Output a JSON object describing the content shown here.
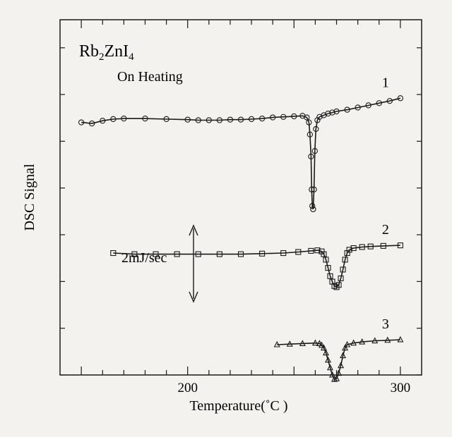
{
  "chart_data": {
    "type": "line",
    "title": "Rb2ZnI4",
    "subtitle": "On Heating",
    "xlabel": "Temperature(˚C )",
    "ylabel": "DSC Signal",
    "xlim": [
      140,
      310
    ],
    "x_ticks": [
      200,
      300
    ],
    "scale_annotation": "2mJ/sec",
    "series": [
      {
        "name": "1",
        "marker": "circle",
        "points": [
          [
            150,
            162
          ],
          [
            155,
            160
          ],
          [
            160,
            165
          ],
          [
            165,
            168
          ],
          [
            170,
            169
          ],
          [
            180,
            169
          ],
          [
            190,
            168
          ],
          [
            200,
            167
          ],
          [
            205,
            166
          ],
          [
            210,
            166
          ],
          [
            215,
            166
          ],
          [
            220,
            167
          ],
          [
            225,
            167
          ],
          [
            230,
            168
          ],
          [
            235,
            169
          ],
          [
            240,
            171
          ],
          [
            245,
            172
          ],
          [
            250,
            173
          ],
          [
            254,
            174
          ],
          [
            256,
            171
          ],
          [
            257,
            162
          ],
          [
            257.5,
            140
          ],
          [
            258,
            100
          ],
          [
            258.3,
            40
          ],
          [
            258.6,
            10
          ],
          [
            259,
            4
          ],
          [
            259.4,
            40
          ],
          [
            259.8,
            110
          ],
          [
            260.3,
            150
          ],
          [
            261,
            166
          ],
          [
            262,
            172
          ],
          [
            264,
            175
          ],
          [
            266,
            178
          ],
          [
            268,
            180
          ],
          [
            270,
            182
          ],
          [
            275,
            185
          ],
          [
            280,
            189
          ],
          [
            285,
            193
          ],
          [
            290,
            197
          ],
          [
            295,
            201
          ],
          [
            300,
            206
          ]
        ]
      },
      {
        "name": "2",
        "marker": "square",
        "points": [
          [
            165,
            82
          ],
          [
            175,
            80
          ],
          [
            185,
            80
          ],
          [
            195,
            80
          ],
          [
            205,
            80
          ],
          [
            215,
            80
          ],
          [
            225,
            80
          ],
          [
            235,
            81
          ],
          [
            245,
            82
          ],
          [
            252,
            84
          ],
          [
            258,
            86
          ],
          [
            261,
            87
          ],
          [
            263,
            85
          ],
          [
            264,
            80
          ],
          [
            265,
            70
          ],
          [
            266,
            55
          ],
          [
            267,
            40
          ],
          [
            268,
            30
          ],
          [
            269,
            22
          ],
          [
            270,
            20
          ],
          [
            271,
            24
          ],
          [
            272,
            36
          ],
          [
            273,
            52
          ],
          [
            274,
            70
          ],
          [
            275,
            82
          ],
          [
            276,
            88
          ],
          [
            278,
            91
          ],
          [
            282,
            93
          ],
          [
            286,
            94
          ],
          [
            292,
            95
          ],
          [
            300,
            96
          ]
        ]
      },
      {
        "name": "3",
        "marker": "triangle",
        "points": [
          [
            242,
            50
          ],
          [
            248,
            51
          ],
          [
            254,
            52
          ],
          [
            260,
            53
          ],
          [
            262,
            52
          ],
          [
            263,
            49
          ],
          [
            264,
            44
          ],
          [
            265,
            35
          ],
          [
            266,
            22
          ],
          [
            267,
            8
          ],
          [
            268,
            -5
          ],
          [
            269,
            -13
          ],
          [
            270,
            -12
          ],
          [
            271,
            -2
          ],
          [
            272,
            12
          ],
          [
            273,
            30
          ],
          [
            274,
            44
          ],
          [
            275,
            50
          ],
          [
            278,
            53
          ],
          [
            282,
            55
          ],
          [
            288,
            57
          ],
          [
            294,
            58
          ],
          [
            300,
            59
          ]
        ]
      }
    ]
  }
}
